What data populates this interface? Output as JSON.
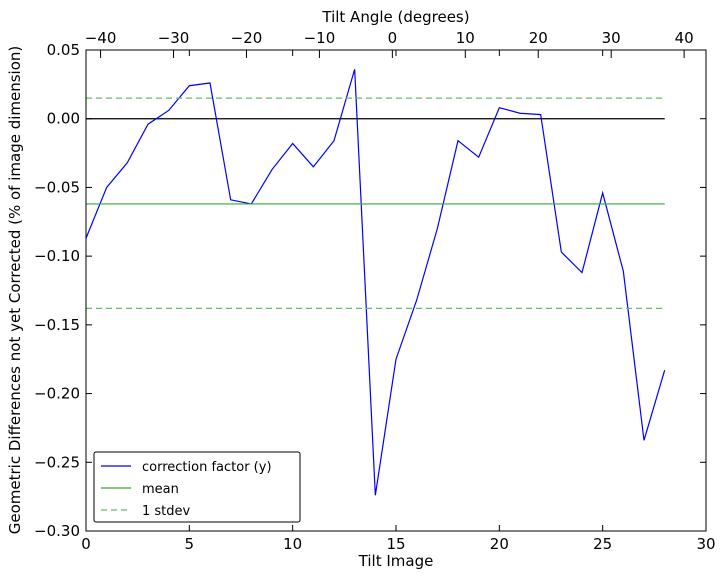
{
  "chart_data": {
    "type": "line",
    "xlabel": "Tilt Image",
    "ylabel": "Geometric Differences not yet Corrected (% of image dimension)",
    "x2label": "Tilt Angle (degrees)",
    "xlim": [
      0,
      30
    ],
    "ylim": [
      -0.3,
      0.05
    ],
    "x2lim": [
      -42,
      43
    ],
    "x_ticks": [
      0,
      5,
      10,
      15,
      20,
      25,
      30
    ],
    "x_tick_labels": [
      "0",
      "5",
      "10",
      "15",
      "20",
      "25",
      "30"
    ],
    "y_ticks": [
      0.05,
      0.0,
      -0.05,
      -0.1,
      -0.15,
      -0.2,
      -0.25,
      -0.3
    ],
    "y_tick_labels": [
      "0.05",
      "0.00",
      "−0.05",
      "−0.10",
      "−0.15",
      "−0.20",
      "−0.25",
      "−0.30"
    ],
    "x2_ticks": [
      -40,
      -30,
      -20,
      -10,
      0,
      10,
      20,
      30,
      40
    ],
    "x2_tick_labels": [
      "−40",
      "−30",
      "−20",
      "−10",
      "0",
      "10",
      "20",
      "30",
      "40"
    ],
    "zero_line": 0.0,
    "series": [
      {
        "name": "correction factor (y)",
        "color": "#0000ff",
        "style": "solid",
        "x": [
          0,
          1,
          2,
          3,
          4,
          5,
          6,
          7,
          8,
          9,
          10,
          11,
          12,
          13,
          14,
          15,
          16,
          17,
          18,
          19,
          20,
          21,
          22,
          23,
          24,
          25,
          26,
          27,
          28
        ],
        "y": [
          -0.087,
          -0.05,
          -0.032,
          -0.004,
          0.006,
          0.024,
          0.026,
          -0.059,
          -0.062,
          -0.037,
          -0.018,
          -0.035,
          -0.016,
          0.036,
          -0.274,
          -0.175,
          -0.132,
          -0.08,
          -0.016,
          -0.028,
          0.008,
          0.004,
          0.003,
          -0.097,
          -0.112,
          -0.054,
          -0.111,
          -0.234,
          -0.183
        ]
      },
      {
        "name": "mean",
        "color": "#33aa33",
        "style": "solid",
        "x": [
          0,
          28
        ],
        "y": [
          -0.062,
          -0.062
        ]
      },
      {
        "name": "1 stdev",
        "color": "#66bb66",
        "style": "dashed",
        "x": [
          0,
          28
        ],
        "y": [
          0.015,
          0.015
        ]
      },
      {
        "name": "",
        "color": "#66bb66",
        "style": "dashed",
        "x": [
          0,
          28
        ],
        "y": [
          -0.138,
          -0.138
        ]
      }
    ],
    "legend": [
      {
        "label": "correction factor (y)",
        "color": "#0000ff",
        "style": "solid"
      },
      {
        "label": "mean",
        "color": "#33aa33",
        "style": "solid"
      },
      {
        "label": "1 stdev",
        "color": "#66bb66",
        "style": "dashed"
      }
    ],
    "legend_position": "lower-left"
  }
}
